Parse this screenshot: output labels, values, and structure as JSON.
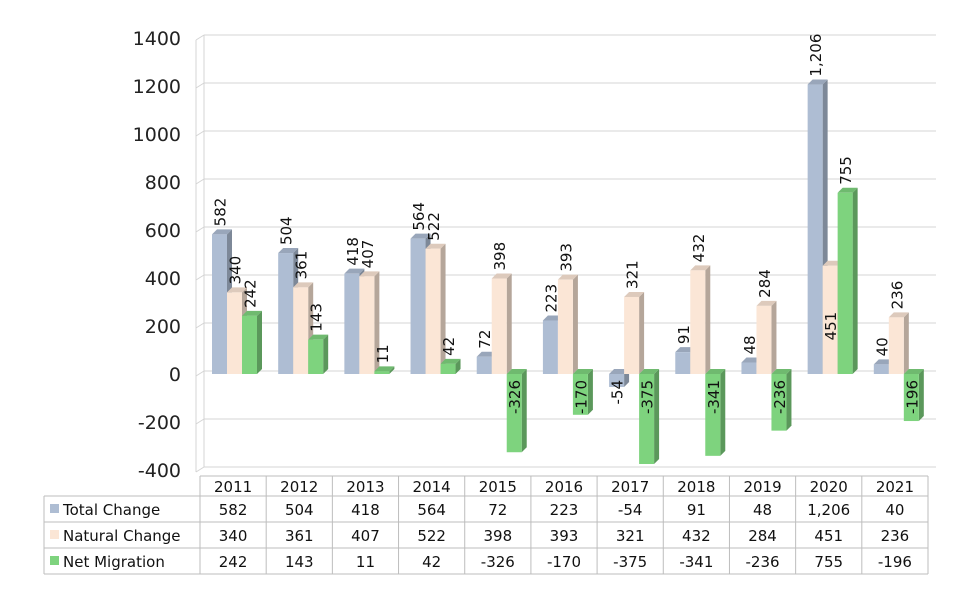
{
  "chart_data": {
    "type": "bar",
    "title": "",
    "xlabel": "",
    "ylabel": "",
    "ylim": [
      -400,
      1400
    ],
    "yticks": [
      -400,
      -200,
      0,
      200,
      400,
      600,
      800,
      1000,
      1200,
      1400
    ],
    "categories": [
      "2011",
      "2012",
      "2013",
      "2014",
      "2015",
      "2016",
      "2017",
      "2018",
      "2019",
      "2020",
      "2021"
    ],
    "series": [
      {
        "name": "Total Change",
        "color": "#aebdd3",
        "values": [
          582,
          504,
          418,
          564,
          72,
          223,
          -54,
          91,
          48,
          1206,
          40
        ],
        "labels": [
          "582",
          "504",
          "418",
          "564",
          "72",
          "223",
          "-54",
          "91",
          "48",
          "1,206",
          "40"
        ]
      },
      {
        "name": "Natural Change",
        "color": "#fbe6d6",
        "values": [
          340,
          361,
          407,
          522,
          398,
          393,
          321,
          432,
          284,
          451,
          236
        ],
        "labels": [
          "340",
          "361",
          "407",
          "522",
          "398",
          "393",
          "321",
          "432",
          "284",
          "451",
          "236"
        ]
      },
      {
        "name": "Net Migration",
        "color": "#7ed37e",
        "values": [
          242,
          143,
          11,
          42,
          -326,
          -170,
          -375,
          -341,
          -236,
          755,
          -196
        ],
        "labels": [
          "242",
          "143",
          "11",
          "42",
          "-326",
          "-170",
          "-375",
          "-341",
          "-236",
          "755",
          "-196"
        ]
      }
    ],
    "table": {
      "rows": [
        {
          "name": "Total Change",
          "cells": [
            "582",
            "504",
            "418",
            "564",
            "72",
            "223",
            "-54",
            "91",
            "48",
            "1,206",
            "40"
          ]
        },
        {
          "name": "Natural Change",
          "cells": [
            "340",
            "361",
            "407",
            "522",
            "398",
            "393",
            "321",
            "432",
            "284",
            "451",
            "236"
          ]
        },
        {
          "name": "Net Migration",
          "cells": [
            "242",
            "143",
            "11",
            "42",
            "-326",
            "-170",
            "-375",
            "-341",
            "-236",
            "755",
            "-196"
          ]
        }
      ]
    },
    "gridlines": true,
    "legend": "data-table-left"
  }
}
